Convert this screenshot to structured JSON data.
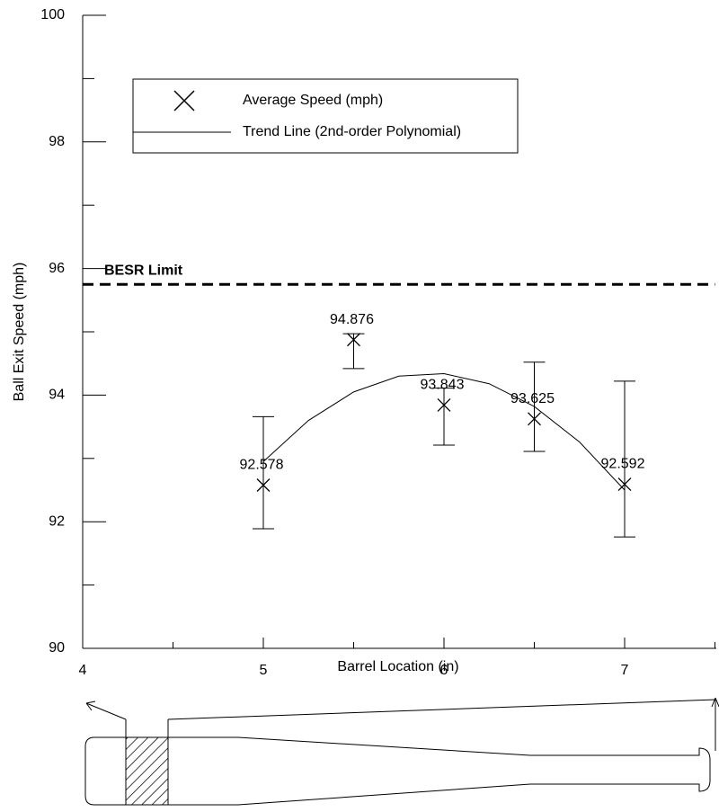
{
  "chart_data": {
    "type": "scatter",
    "xlabel": "Barrel Location (in)",
    "ylabel": "Ball Exit Speed (mph)",
    "xlim": [
      4,
      7.5
    ],
    "xticks": [
      4,
      5,
      6,
      7
    ],
    "xminor_ticks": [
      4.5,
      5.5,
      6.5,
      7.5
    ],
    "ylim": [
      90,
      100
    ],
    "yticks": [
      90,
      92,
      94,
      96,
      98,
      100
    ],
    "yminor_ticks": [
      91,
      93,
      95,
      97,
      99
    ],
    "grid": false,
    "series": [
      {
        "name": "Average Speed (mph)",
        "color": "#000000",
        "x": [
          5,
          5.5,
          6,
          6.5,
          7
        ],
        "values": [
          92.578,
          94.876,
          93.843,
          93.625,
          92.592
        ],
        "error_low": [
          91.89,
          94.42,
          93.21,
          93.11,
          91.76
        ],
        "error_high": [
          93.66,
          94.97,
          94.11,
          94.52,
          94.22
        ]
      },
      {
        "name": "Trend Line (2nd-order Polynomial)",
        "color": "#000000",
        "x": [
          5,
          5.25,
          5.5,
          5.75,
          6,
          6.25,
          6.5,
          6.75,
          7
        ],
        "values": [
          92.95,
          93.6,
          94.05,
          94.3,
          94.34,
          94.18,
          93.82,
          93.26,
          92.5
        ]
      }
    ],
    "reference_lines": [
      {
        "value": 95.75,
        "label": "BESR Limit"
      }
    ]
  }
}
